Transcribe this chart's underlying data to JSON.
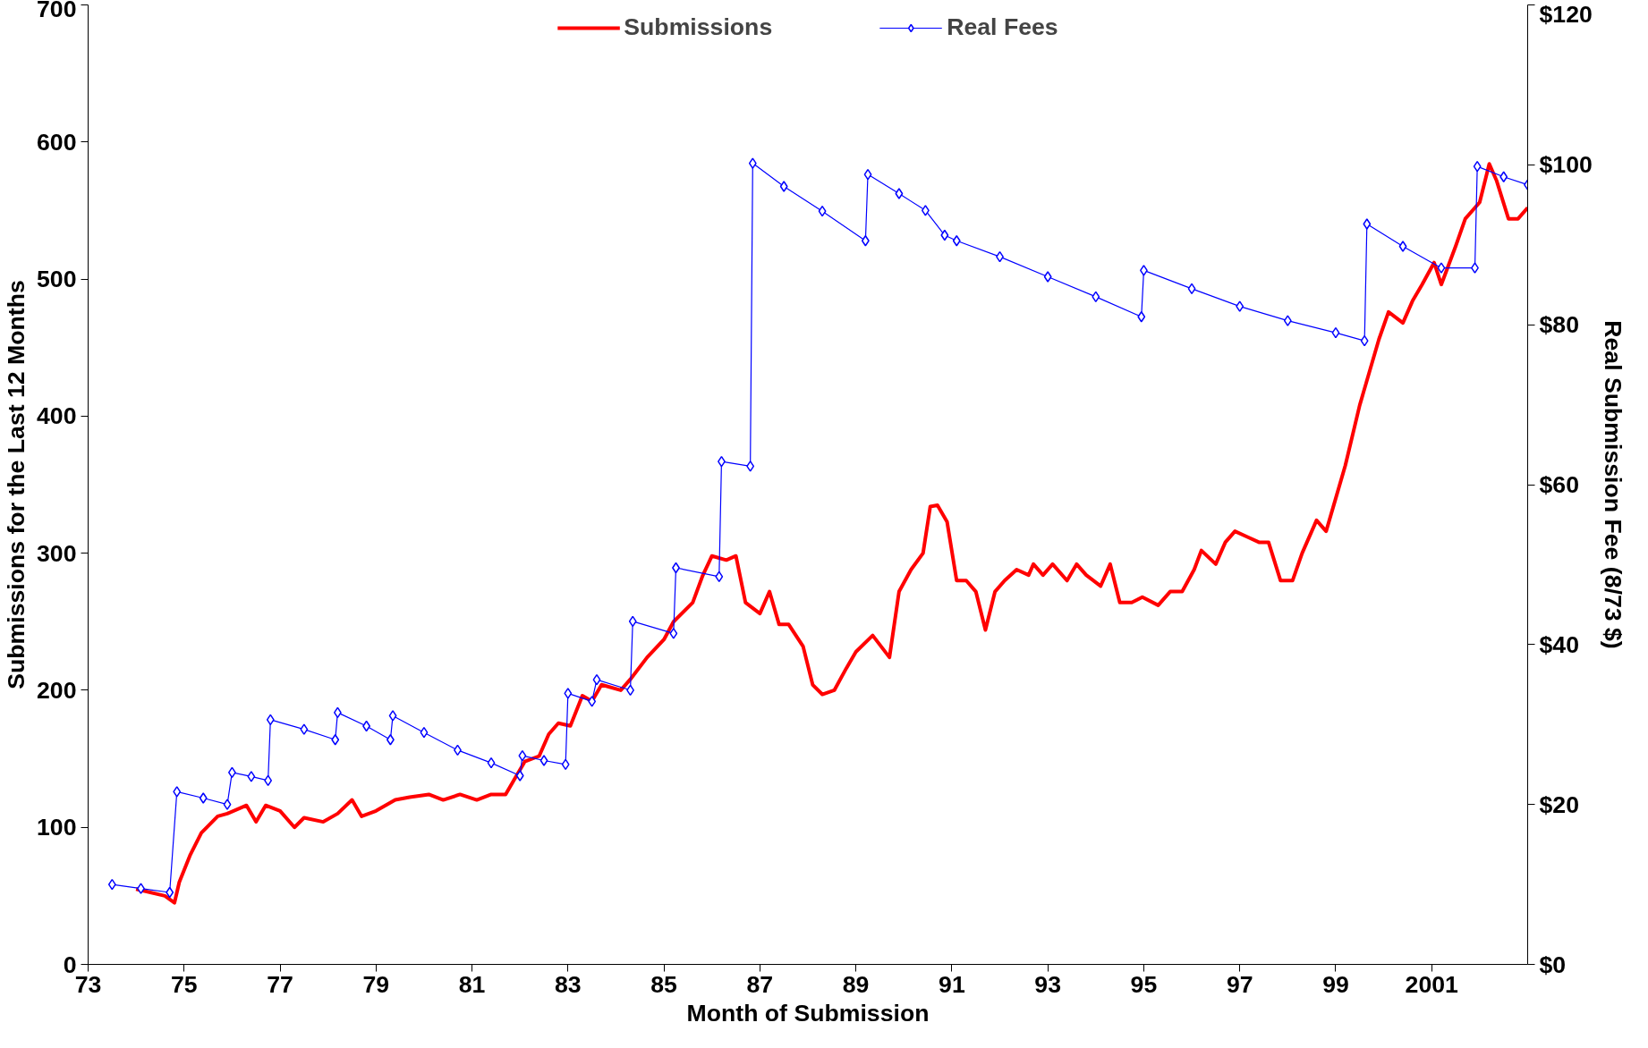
{
  "chart_data": {
    "type": "line",
    "xlabel": "Month of Submission",
    "ylabel": "Submissions for the Last 12 Months",
    "y2label": "Real Submission Fee (8/73 $)",
    "xlim": [
      1973,
      2003
    ],
    "xticks": [
      {
        "value": 1973,
        "label": "73"
      },
      {
        "value": 1975,
        "label": "75"
      },
      {
        "value": 1977,
        "label": "77"
      },
      {
        "value": 1979,
        "label": "79"
      },
      {
        "value": 1981,
        "label": "81"
      },
      {
        "value": 1983,
        "label": "83"
      },
      {
        "value": 1985,
        "label": "85"
      },
      {
        "value": 1987,
        "label": "87"
      },
      {
        "value": 1989,
        "label": "89"
      },
      {
        "value": 1991,
        "label": "91"
      },
      {
        "value": 1993,
        "label": "93"
      },
      {
        "value": 1995,
        "label": "95"
      },
      {
        "value": 1997,
        "label": "97"
      },
      {
        "value": 1999,
        "label": "99"
      },
      2001
    ],
    "ylim": [
      0,
      700
    ],
    "yticks": [
      0,
      100,
      200,
      300,
      400,
      500,
      600,
      700
    ],
    "y2lim": [
      0,
      120
    ],
    "y2ticks": [
      {
        "value": 0,
        "label": "$0"
      },
      {
        "value": 20,
        "label": "$20"
      },
      {
        "value": 40,
        "label": "$40"
      },
      {
        "value": 60,
        "label": "$60"
      },
      {
        "value": 80,
        "label": "$80"
      },
      {
        "value": 100,
        "label": "$100"
      },
      {
        "value": 120,
        "label": "$120"
      }
    ],
    "grid": false,
    "legend": "top",
    "series": [
      {
        "name": "Submissions",
        "color": "#ff0000",
        "marker": "none",
        "x": [
          1974.0,
          1974.6,
          1974.8,
          1974.9,
          1975.13,
          1975.36,
          1975.7,
          1975.9,
          1976.3,
          1976.5,
          1976.7,
          1977.0,
          1977.3,
          1977.5,
          1977.9,
          1978.2,
          1978.5,
          1978.7,
          1979.0,
          1979.4,
          1979.7,
          1980.1,
          1980.4,
          1980.75,
          1981.1,
          1981.4,
          1981.7,
          1981.9,
          1982.1,
          1982.4,
          1982.6,
          1982.8,
          1983.05,
          1983.3,
          1983.5,
          1983.7,
          1984.1,
          1984.3,
          1984.65,
          1985.0,
          1985.2,
          1985.6,
          1985.8,
          1986.0,
          1986.3,
          1986.5,
          1986.7,
          1987.0,
          1987.2,
          1987.4,
          1987.6,
          1987.9,
          1988.1,
          1988.3,
          1988.55,
          1988.8,
          1989.0,
          1989.35,
          1989.7,
          1989.9,
          1990.15,
          1990.4,
          1990.55,
          1990.7,
          1990.9,
          1991.1,
          1991.3,
          1991.5,
          1991.7,
          1991.9,
          1992.1,
          1992.35,
          1992.6,
          1992.7,
          1992.9,
          1993.1,
          1993.4,
          1993.6,
          1993.8,
          1994.1,
          1994.3,
          1994.5,
          1994.75,
          1994.97,
          1995.3,
          1995.55,
          1995.8,
          1996.05,
          1996.2,
          1996.5,
          1996.7,
          1996.9,
          1997.15,
          1997.4,
          1997.6,
          1997.85,
          1998.1,
          1998.3,
          1998.6,
          1998.8,
          1999.0,
          1999.2,
          1999.5,
          1999.7,
          1999.9,
          2000.1,
          2000.4,
          2000.6,
          2000.8,
          2001.05,
          2001.2,
          2001.5,
          2001.7,
          2002.0,
          2002.2,
          2002.35,
          2002.6,
          2002.8,
          2003.0
        ],
        "values": [
          55,
          50,
          45,
          60,
          80,
          96,
          108,
          110,
          116,
          104,
          116,
          112,
          100,
          107,
          104,
          110,
          120,
          108,
          112,
          120,
          122,
          124,
          120,
          124,
          120,
          124,
          124,
          136,
          148,
          152,
          168,
          176,
          174,
          196,
          192,
          204,
          200,
          208,
          224,
          237,
          250,
          264,
          283,
          298,
          295,
          298,
          264,
          256,
          272,
          248,
          248,
          232,
          204,
          197,
          200,
          216,
          228,
          240,
          224,
          272,
          288,
          300,
          334,
          335,
          323,
          280,
          280,
          272,
          244,
          272,
          280,
          288,
          284,
          292,
          284,
          292,
          280,
          292,
          284,
          276,
          292,
          264,
          264,
          268,
          262,
          272,
          272,
          288,
          302,
          292,
          308,
          316,
          312,
          308,
          308,
          280,
          280,
          300,
          324,
          316,
          340,
          364,
          408,
          432,
          456,
          476,
          468,
          484,
          496,
          512,
          496,
          524,
          544,
          556,
          584,
          572,
          544,
          544,
          552
        ]
      },
      {
        "name": "Real Fees",
        "color": "#0000ff",
        "axis": "y2",
        "marker": "diamond",
        "x": [
          1973.5,
          1974.1,
          1974.7,
          1974.85,
          1975.4,
          1975.9,
          1976.0,
          1976.4,
          1976.75,
          1976.8,
          1977.5,
          1978.15,
          1978.2,
          1978.8,
          1979.3,
          1979.35,
          1980.0,
          1980.7,
          1981.4,
          1982.0,
          1982.05,
          1982.5,
          1982.95,
          1983.0,
          1983.5,
          1983.6,
          1984.3,
          1984.35,
          1985.2,
          1985.25,
          1986.15,
          1986.2,
          1986.8,
          1986.85,
          1987.5,
          1988.3,
          1989.2,
          1989.25,
          1989.9,
          1990.45,
          1990.85,
          1991.1,
          1992.0,
          1993.0,
          1994.0,
          1994.95,
          1995.0,
          1996.0,
          1997.0,
          1998.0,
          1999.0,
          1999.6,
          1999.65,
          2000.4,
          2001.2,
          2001.9,
          2001.95,
          2002.5,
          2003.0
        ],
        "values": [
          10,
          9.5,
          9,
          21.6,
          20.8,
          20,
          24,
          23.5,
          23,
          30.6,
          29.4,
          28.1,
          31.5,
          29.8,
          28.1,
          31.1,
          29,
          26.8,
          25.2,
          23.6,
          26.1,
          25.5,
          25,
          33.9,
          32.9,
          35.6,
          34.3,
          42.9,
          41.4,
          49.6,
          48.5,
          62.9,
          62.3,
          100.2,
          97.3,
          94.2,
          90.5,
          98.8,
          96.4,
          94.3,
          91.2,
          90.5,
          88.5,
          86,
          83.5,
          81,
          86.8,
          84.5,
          82.3,
          80.5,
          79,
          78,
          92.6,
          89.8,
          87.1,
          87.1,
          99.8,
          98.5,
          97.5
        ]
      }
    ]
  }
}
